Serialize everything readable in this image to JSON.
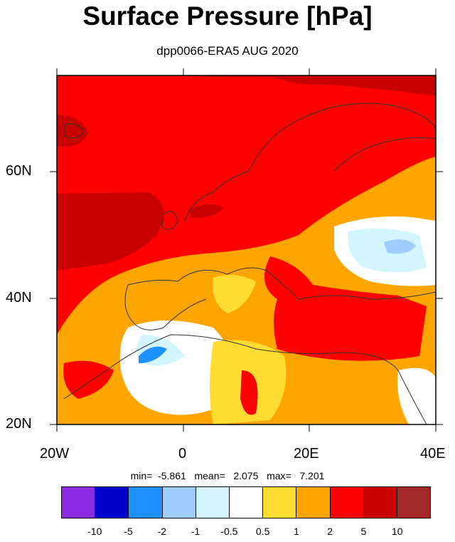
{
  "title": "Surface Pressure [hPa]",
  "subtitle": "dpp0066-ERA5 AUG 2020",
  "y_ticks": [
    "60N",
    "40N",
    "20N"
  ],
  "x_ticks": [
    "20W",
    "0",
    "20E",
    "40E"
  ],
  "stats": {
    "min_label": "min=",
    "min": "-5.861",
    "mean_label": "mean=",
    "mean": "2.075",
    "max_label": "max=",
    "max": "7.201"
  },
  "colorbar": {
    "colors": [
      "#8b2be2",
      "#0000cd",
      "#1e90ff",
      "#a0cdff",
      "#d2f5ff",
      "#ffffff",
      "#ffdc32",
      "#ffa500",
      "#ff0000",
      "#c80000",
      "#a52828"
    ],
    "labels": [
      "-10",
      "-5",
      "-2",
      "-1",
      "-0.5",
      "0.5",
      "1",
      "2",
      "5",
      "10"
    ]
  },
  "map_colors": {
    "dark_red": "#c80000",
    "red": "#ff0000",
    "orange": "#ffa500",
    "yellow": "#ffdc32",
    "white": "#ffffff",
    "light_blue": "#d2f5ff",
    "blue": "#a0cdff",
    "mid_blue": "#1e90ff"
  }
}
